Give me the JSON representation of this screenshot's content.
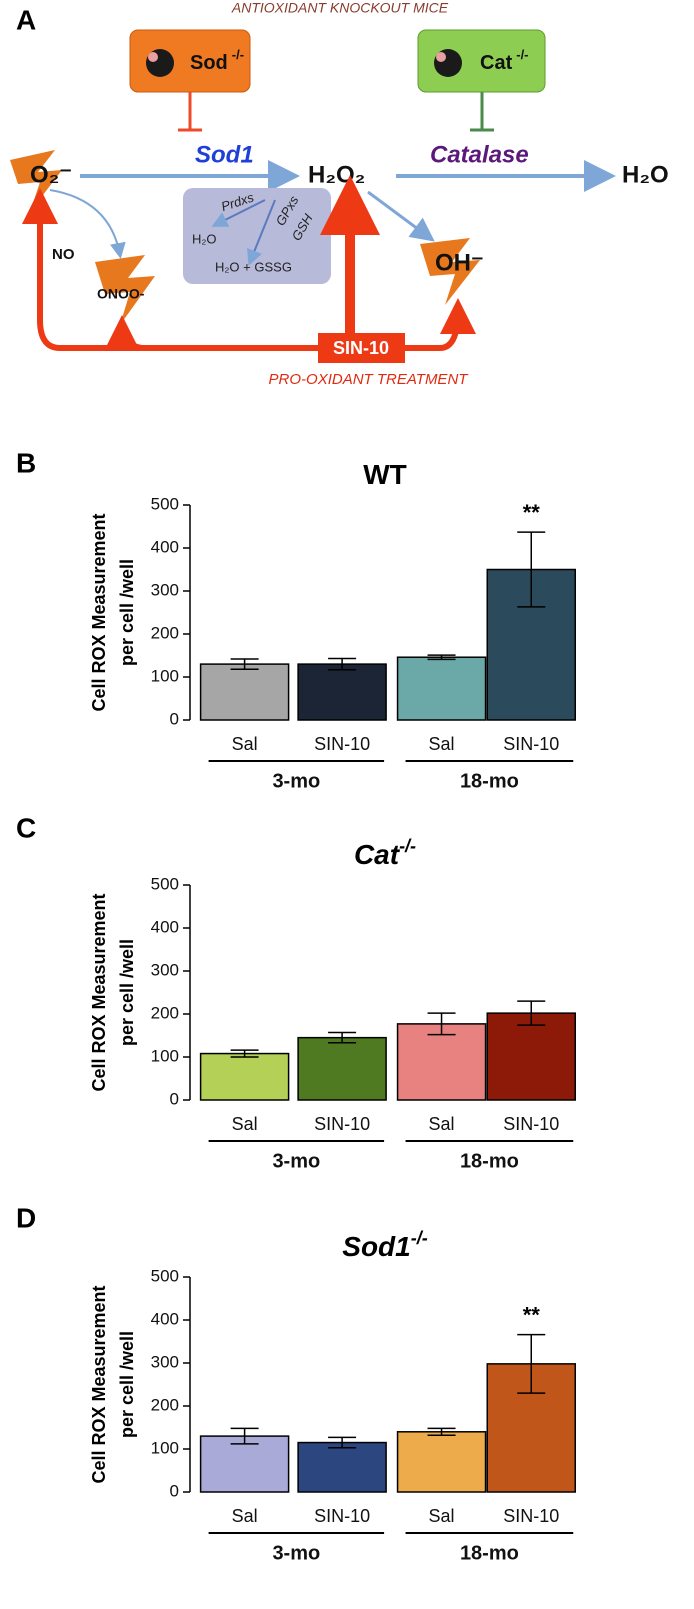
{
  "diagram": {
    "panel": "A",
    "header": "ANTIOXIDANT KNOCKOUT MICE",
    "footer": "PRO-OXIDANT TREATMENT",
    "knockouts": [
      {
        "gene": "Sod",
        "genotype": "-/-"
      },
      {
        "gene": "Cat",
        "genotype": "-/-"
      }
    ],
    "enzymes": [
      "Sod1",
      "Catalase"
    ],
    "species": {
      "superoxide": "O₂⁻",
      "peroxide": "H₂O₂",
      "water": "H₂O",
      "hydroxyl": "OH⁻",
      "nitric_oxide": "NO",
      "peroxynitrite": "ONOO-"
    },
    "scavengers": {
      "prdxs": "Prdxs",
      "prdxs_product": "H₂O",
      "gpxs": "GPxs",
      "gsh": "GSH",
      "gpxs_product": "H₂O + GSSG"
    },
    "treatment": "SIN-10"
  },
  "chart_data": [
    {
      "type": "bar",
      "panel": "B",
      "title": "WT",
      "ylabel": [
        "Cell ROX Measurement",
        "per cell /well"
      ],
      "categories": [
        "Sal",
        "SIN-10",
        "Sal",
        "SIN-10"
      ],
      "groups": [
        "3-mo",
        "18-mo"
      ],
      "values": [
        130,
        130,
        146,
        350
      ],
      "errors": [
        12,
        13,
        5,
        87
      ],
      "colors": [
        "#a6a6a6",
        "#1b2536",
        "#6aa9a7",
        "#2b4a5b"
      ],
      "significance": [
        null,
        null,
        null,
        "**"
      ],
      "ylim": [
        0,
        500
      ],
      "yticks": [
        0,
        100,
        200,
        300,
        400,
        500
      ]
    },
    {
      "type": "bar",
      "panel": "C",
      "title": "Cat",
      "title_sup": "-/-",
      "ylabel": [
        "Cell ROX Measurement",
        "per cell /well"
      ],
      "categories": [
        "Sal",
        "SIN-10",
        "Sal",
        "SIN-10"
      ],
      "groups": [
        "3-mo",
        "18-mo"
      ],
      "values": [
        108,
        145,
        177,
        202
      ],
      "errors": [
        8,
        12,
        25,
        28
      ],
      "colors": [
        "#b5d056",
        "#4f7a22",
        "#e88280",
        "#8d1a08"
      ],
      "significance": [
        null,
        null,
        null,
        null
      ],
      "ylim": [
        0,
        500
      ],
      "yticks": [
        0,
        100,
        200,
        300,
        400,
        500
      ]
    },
    {
      "type": "bar",
      "panel": "D",
      "title": "Sod1",
      "title_sup": "-/-",
      "ylabel": [
        "Cell ROX Measurement",
        "per cell /well"
      ],
      "categories": [
        "Sal",
        "SIN-10",
        "Sal",
        "SIN-10"
      ],
      "groups": [
        "3-mo",
        "18-mo"
      ],
      "values": [
        130,
        115,
        140,
        298
      ],
      "errors": [
        18,
        12,
        8,
        68
      ],
      "colors": [
        "#aaaad9",
        "#2c4680",
        "#eeab4b",
        "#c1561b"
      ],
      "significance": [
        null,
        null,
        null,
        "**"
      ],
      "ylim": [
        0,
        500
      ],
      "yticks": [
        0,
        100,
        200,
        300,
        400,
        500
      ]
    }
  ]
}
